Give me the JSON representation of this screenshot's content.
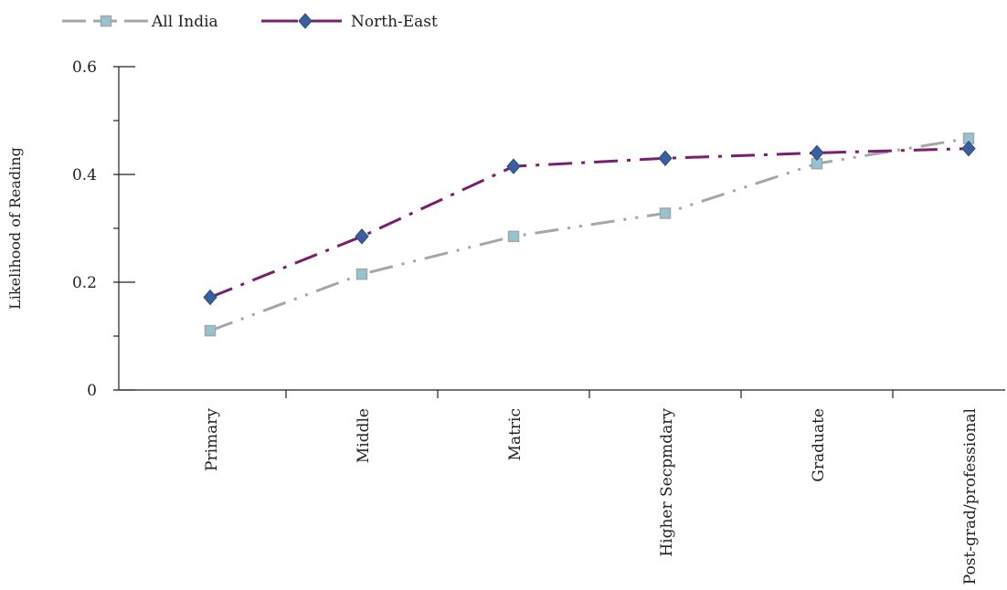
{
  "chart_data": {
    "type": "line",
    "title": "",
    "xlabel": "",
    "ylabel": "Likelihood of Reading",
    "categories": [
      "Primary",
      "Middle",
      "Matric",
      "Higher Secpmdary",
      "Graduate",
      "Post-grad/professional"
    ],
    "ylim": [
      0,
      0.6
    ],
    "yticks": [
      "0",
      "0.2",
      "0.4",
      "0.6"
    ],
    "legend_position": "top-left",
    "grid": false,
    "series": [
      {
        "name": "All India",
        "values": [
          0.11,
          0.215,
          0.285,
          0.328,
          0.42,
          0.467
        ],
        "color": "#a6a6a6",
        "marker": "square",
        "marker_color": "#92c5cf",
        "dash": "dash-dot-dot"
      },
      {
        "name": "North-East",
        "values": [
          0.172,
          0.285,
          0.415,
          0.43,
          0.44,
          0.448
        ],
        "color": "#7a1f6f",
        "marker": "diamond",
        "marker_color": "#3a5f9e",
        "dash": "dash-dot"
      }
    ]
  }
}
